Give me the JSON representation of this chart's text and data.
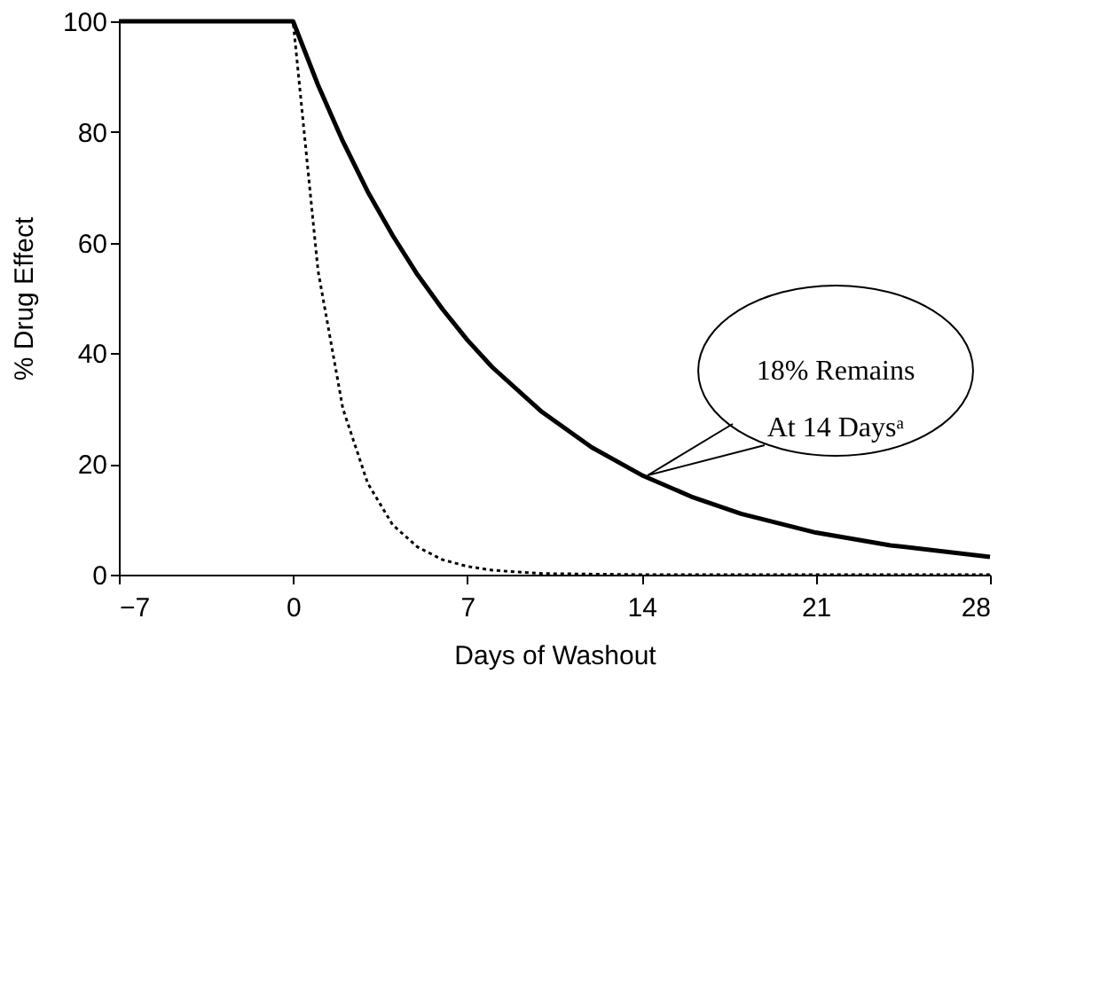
{
  "chart_data": {
    "type": "line",
    "xlabel": "Days of Washout",
    "ylabel": "% Drug Effect",
    "series": [
      {
        "color": "#000000",
        "line_style": "solid",
        "x": [
          -7,
          0,
          1,
          2,
          3,
          4,
          5,
          6,
          7,
          8,
          10,
          12,
          14,
          16,
          18,
          21,
          24,
          28
        ],
        "values": [
          100,
          100,
          88.5,
          78.3,
          69.2,
          61.3,
          54.2,
          48,
          42.4,
          37.5,
          29.4,
          23,
          18,
          14.1,
          11,
          7.6,
          5.3,
          3.2
        ]
      },
      {
        "color": "#000000",
        "line_style": "dotted",
        "x": [
          -7,
          0,
          1,
          2,
          3,
          4,
          5,
          6,
          7,
          8,
          10,
          14,
          21,
          28
        ],
        "values": [
          100,
          100,
          55,
          30,
          16.5,
          9,
          5,
          2.7,
          1.5,
          0.8,
          0.2,
          0,
          0,
          0
        ]
      }
    ],
    "annotations": [
      "18% Remains\nAt 14 Daysᵃ"
    ],
    "xlim": [
      -7,
      28
    ],
    "xticks": [
      -7,
      0,
      7,
      14,
      21,
      28
    ],
    "ylim": [
      0,
      100
    ],
    "yticks": [
      0,
      20,
      40,
      60,
      80,
      100
    ],
    "grid": false
  }
}
